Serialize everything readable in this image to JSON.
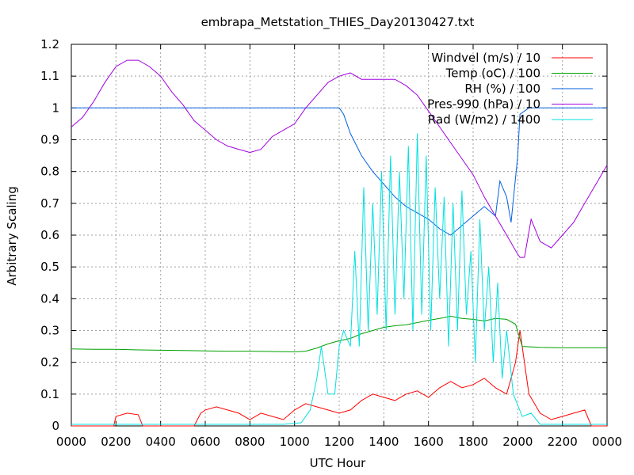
{
  "chart_data": {
    "type": "line",
    "title": "embrapa_Metstation_THIES_Day20130427.txt",
    "xlabel": "UTC Hour",
    "ylabel": "Arbitrary Scaling",
    "xlim": [
      0,
      24
    ],
    "ylim": [
      0,
      1.2
    ],
    "x_ticks": [
      "0000",
      "0200",
      "0400",
      "0600",
      "0800",
      "1000",
      "1200",
      "1400",
      "1600",
      "1800",
      "2000",
      "2200",
      "0000"
    ],
    "y_ticks": [
      "0",
      "0.1",
      "0.2",
      "0.3",
      "0.4",
      "0.5",
      "0.6",
      "0.7",
      "0.8",
      "0.9",
      "1",
      "1.1",
      "1.2"
    ],
    "grid": true,
    "legend_position": "top-right",
    "series": [
      {
        "name": "Windvel (m/s) / 10",
        "color": "#ff0000",
        "x": [
          0,
          1.9,
          2.0,
          2.5,
          3.0,
          3.2,
          3.5,
          5.5,
          5.8,
          6.0,
          6.5,
          7.0,
          7.5,
          8.0,
          8.5,
          9.0,
          9.5,
          10.0,
          10.5,
          11.0,
          11.5,
          12.0,
          12.5,
          13.0,
          13.5,
          14.0,
          14.5,
          15.0,
          15.5,
          16.0,
          16.5,
          17.0,
          17.5,
          18.0,
          18.5,
          19.0,
          19.5,
          19.9,
          20.1,
          20.5,
          21.0,
          21.5,
          22.0,
          22.5,
          23.0,
          23.3,
          24.0
        ],
        "y": [
          0,
          0,
          0.03,
          0.04,
          0.035,
          0.0,
          0.0,
          0.0,
          0.04,
          0.05,
          0.06,
          0.05,
          0.04,
          0.02,
          0.04,
          0.03,
          0.02,
          0.05,
          0.07,
          0.06,
          0.05,
          0.04,
          0.05,
          0.08,
          0.1,
          0.09,
          0.08,
          0.1,
          0.11,
          0.09,
          0.12,
          0.14,
          0.12,
          0.13,
          0.15,
          0.12,
          0.1,
          0.2,
          0.3,
          0.1,
          0.04,
          0.02,
          0.03,
          0.04,
          0.05,
          0.0,
          0.0
        ]
      },
      {
        "name": "Temp (oC) / 100",
        "color": "#00a000",
        "x": [
          0,
          1,
          2,
          3,
          4,
          5,
          6,
          7,
          8,
          9,
          10,
          10.5,
          11,
          11.5,
          12,
          12.5,
          13,
          13.5,
          14,
          14.5,
          15,
          15.5,
          16,
          16.5,
          17,
          17.5,
          18,
          18.5,
          19,
          19.5,
          19.9,
          20.2,
          21,
          22,
          23,
          24
        ],
        "y": [
          0.242,
          0.241,
          0.241,
          0.239,
          0.238,
          0.237,
          0.236,
          0.235,
          0.235,
          0.234,
          0.233,
          0.235,
          0.245,
          0.258,
          0.268,
          0.275,
          0.29,
          0.3,
          0.31,
          0.315,
          0.318,
          0.325,
          0.332,
          0.338,
          0.345,
          0.338,
          0.335,
          0.33,
          0.338,
          0.335,
          0.32,
          0.25,
          0.247,
          0.246,
          0.246,
          0.246
        ]
      },
      {
        "name": "RH (%) / 100",
        "color": "#0060e0",
        "x": [
          0,
          11,
          12,
          12.2,
          12.5,
          13,
          13.5,
          14,
          14.5,
          15,
          15.5,
          16,
          16.5,
          17,
          17.5,
          18,
          18.5,
          19,
          19.2,
          19.5,
          19.7,
          20,
          20.1,
          20.5,
          24
        ],
        "y": [
          1.0,
          1.0,
          1.0,
          0.98,
          0.92,
          0.85,
          0.8,
          0.76,
          0.72,
          0.69,
          0.67,
          0.65,
          0.62,
          0.6,
          0.63,
          0.66,
          0.69,
          0.66,
          0.77,
          0.72,
          0.64,
          0.85,
          0.98,
          1.0,
          1.0
        ]
      },
      {
        "name": "Pres-990 (hPa) / 10",
        "color": "#a000e0",
        "x": [
          0,
          0.5,
          1,
          1.5,
          2,
          2.5,
          3,
          3.5,
          4,
          4.5,
          5,
          5.5,
          6,
          6.5,
          7,
          7.5,
          8,
          8.5,
          9,
          9.5,
          10,
          10.5,
          11,
          11.5,
          12,
          12.5,
          13,
          13.5,
          14,
          14.5,
          15,
          15.5,
          16,
          16.5,
          17,
          17.5,
          18,
          18.5,
          19,
          19.5,
          20,
          20.1,
          20.3,
          20.6,
          21,
          21.5,
          22,
          22.5,
          23,
          23.5,
          24
        ],
        "y": [
          0.94,
          0.97,
          1.02,
          1.08,
          1.13,
          1.15,
          1.15,
          1.13,
          1.1,
          1.05,
          1.01,
          0.96,
          0.93,
          0.9,
          0.88,
          0.87,
          0.86,
          0.87,
          0.91,
          0.93,
          0.95,
          1.0,
          1.04,
          1.08,
          1.1,
          1.11,
          1.09,
          1.09,
          1.09,
          1.09,
          1.07,
          1.04,
          0.99,
          0.94,
          0.89,
          0.84,
          0.79,
          0.72,
          0.66,
          0.6,
          0.54,
          0.53,
          0.53,
          0.65,
          0.58,
          0.56,
          0.6,
          0.64,
          0.7,
          0.76,
          0.82
        ]
      },
      {
        "name": "Rad (W/m2) / 1400",
        "color": "#00e0e0",
        "x": [
          0,
          9.5,
          10.3,
          10.7,
          11.0,
          11.2,
          11.5,
          11.8,
          12.0,
          12.2,
          12.5,
          12.7,
          12.9,
          13.1,
          13.3,
          13.5,
          13.7,
          13.9,
          14.1,
          14.3,
          14.5,
          14.7,
          14.9,
          15.1,
          15.3,
          15.5,
          15.7,
          15.9,
          16.1,
          16.3,
          16.5,
          16.7,
          16.9,
          17.1,
          17.3,
          17.5,
          17.7,
          17.9,
          18.1,
          18.3,
          18.5,
          18.7,
          18.9,
          19.1,
          19.3,
          19.5,
          19.8,
          20.2,
          20.6,
          21.0,
          22.0,
          24.0
        ],
        "y": [
          0.005,
          0.005,
          0.01,
          0.05,
          0.15,
          0.25,
          0.1,
          0.1,
          0.25,
          0.3,
          0.25,
          0.55,
          0.25,
          0.75,
          0.3,
          0.7,
          0.35,
          0.8,
          0.3,
          0.85,
          0.35,
          0.8,
          0.4,
          0.88,
          0.3,
          0.92,
          0.35,
          0.85,
          0.3,
          0.75,
          0.4,
          0.72,
          0.25,
          0.7,
          0.3,
          0.74,
          0.35,
          0.55,
          0.2,
          0.65,
          0.3,
          0.5,
          0.2,
          0.45,
          0.15,
          0.3,
          0.1,
          0.03,
          0.04,
          0.005,
          0.005,
          0.005
        ]
      }
    ]
  }
}
